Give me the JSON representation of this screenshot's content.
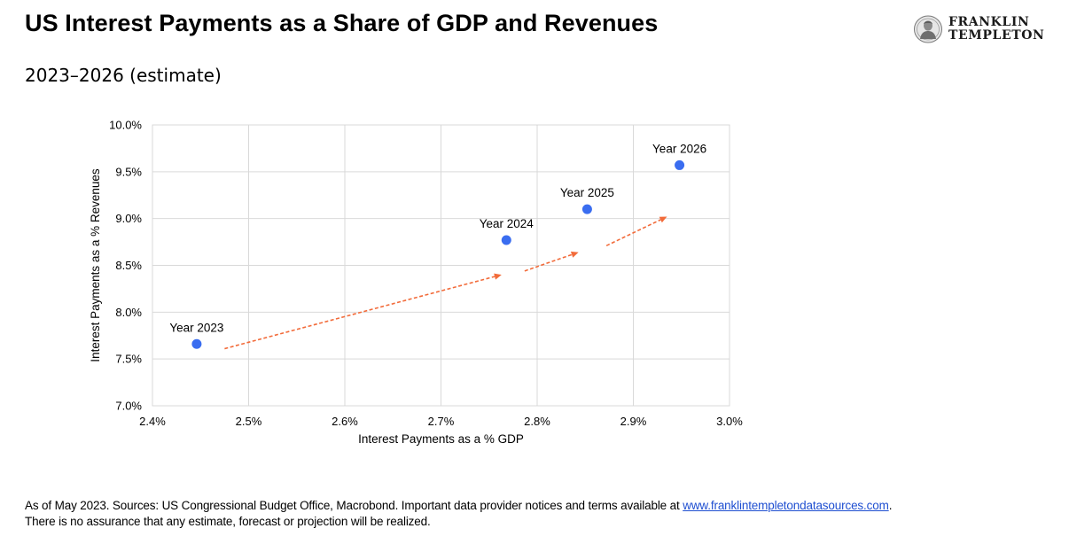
{
  "header": {
    "title": "US Interest Payments as a Share of GDP and Revenues",
    "subtitle": "2023–2026 (estimate)"
  },
  "brand": {
    "line1": "FRANKLIN",
    "line2": "TEMPLETON"
  },
  "footer": {
    "sources_prefix": "As of May 2023. Sources: US Congressional Budget Office, Macrobond. Important data provider notices and terms available at ",
    "link_text": "www.franklintempletondatasources.com",
    "sources_suffix": ".",
    "disclaimer": "There is no assurance that any estimate, forecast or projection will be realized."
  },
  "colors": {
    "point": "#3a6df0",
    "arrow": "#f26b3a",
    "grid": "#d9d9d9",
    "link": "#1f4fd1"
  },
  "chart_data": {
    "type": "scatter",
    "title": "US Interest Payments as a Share of GDP and Revenues",
    "xlabel": "Interest Payments as a % GDP",
    "ylabel": "Interest Payments as a % Revenues",
    "xlim": [
      2.4,
      3.0
    ],
    "ylim": [
      7.0,
      10.0
    ],
    "x_ticks": [
      2.4,
      2.5,
      2.6,
      2.7,
      2.8,
      2.9,
      3.0
    ],
    "y_ticks": [
      7.0,
      7.5,
      8.0,
      8.5,
      9.0,
      9.5,
      10.0
    ],
    "x_tick_labels": [
      "2.4%",
      "2.5%",
      "2.6%",
      "2.7%",
      "2.8%",
      "2.9%",
      "3.0%"
    ],
    "y_tick_labels": [
      "7.0%",
      "7.5%",
      "8.0%",
      "8.5%",
      "9.0%",
      "9.5%",
      "10.0%"
    ],
    "grid": true,
    "points": [
      {
        "label": "Year 2023",
        "x": 2.446,
        "y": 7.66
      },
      {
        "label": "Year 2024",
        "x": 2.768,
        "y": 8.77
      },
      {
        "label": "Year 2025",
        "x": 2.852,
        "y": 9.1
      },
      {
        "label": "Year 2026",
        "x": 2.948,
        "y": 9.57
      }
    ],
    "arrows": [
      {
        "from": [
          2.475,
          7.61
        ],
        "to": [
          2.763,
          8.4
        ]
      },
      {
        "from": [
          2.787,
          8.44
        ],
        "to": [
          2.843,
          8.64
        ]
      },
      {
        "from": [
          2.872,
          8.71
        ],
        "to": [
          2.935,
          9.02
        ]
      }
    ]
  }
}
